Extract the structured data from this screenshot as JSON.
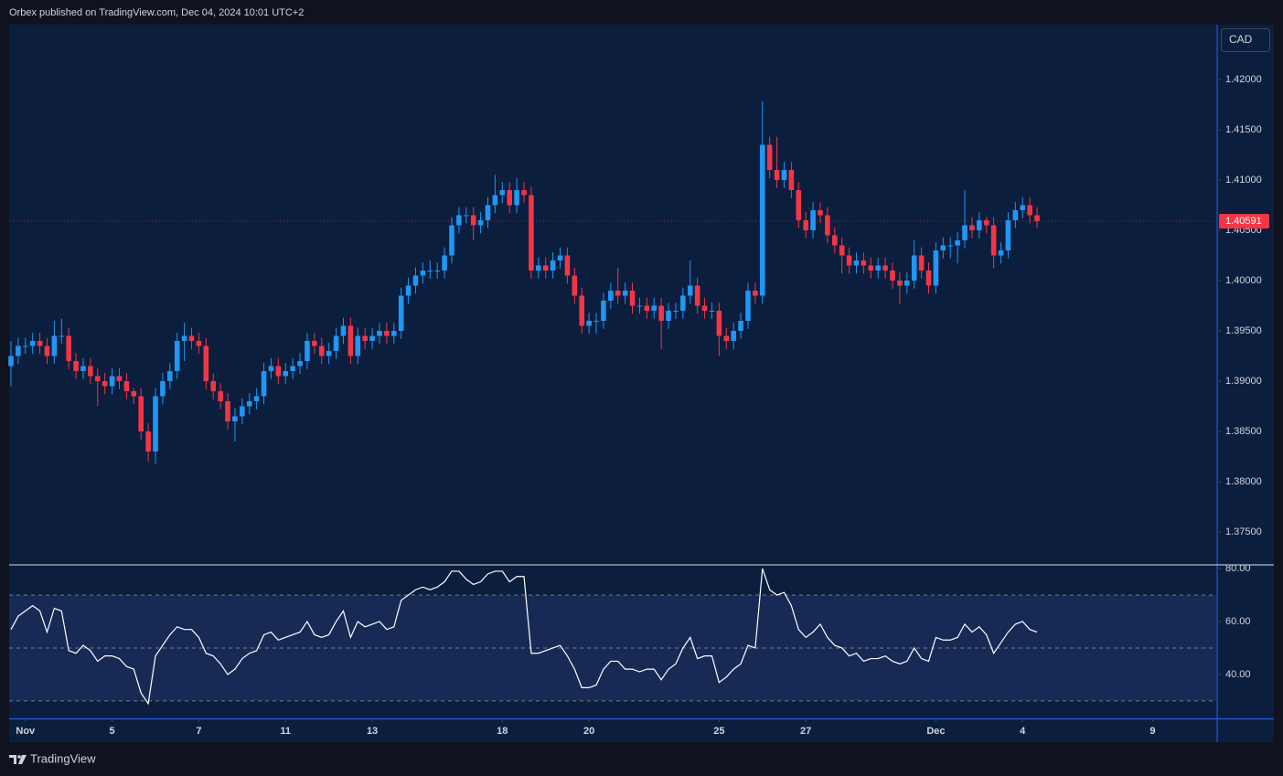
{
  "header": {
    "text": "Orbex published on TradingView.com, Dec 04, 2024 10:01 UTC+2"
  },
  "footer": {
    "brand": "TradingView"
  },
  "chart_data": [
    {
      "type": "candlestick",
      "unit": "CAD",
      "up_color": "#2196f3",
      "down_color": "#f23645",
      "grid": false,
      "open": [
        1.3915,
        1.3925,
        1.3935,
        1.3935,
        1.394,
        1.3935,
        1.3925,
        1.3945,
        1.3945,
        1.392,
        1.391,
        1.3915,
        1.3905,
        1.39,
        1.3895,
        1.3905,
        1.39,
        1.389,
        1.3885,
        1.385,
        1.383,
        1.3885,
        1.39,
        1.391,
        1.394,
        1.3945,
        1.394,
        1.3935,
        1.39,
        1.389,
        1.388,
        1.386,
        1.3865,
        1.3875,
        1.388,
        1.3885,
        1.391,
        1.3915,
        1.3905,
        1.391,
        1.3915,
        1.392,
        1.394,
        1.3935,
        1.3925,
        1.393,
        1.3945,
        1.3955,
        1.3925,
        1.3945,
        1.394,
        1.3945,
        1.395,
        1.3945,
        1.395,
        1.3985,
        1.3995,
        1.4005,
        1.401,
        1.401,
        1.401,
        1.4025,
        1.4055,
        1.4065,
        1.4065,
        1.4055,
        1.406,
        1.4075,
        1.4085,
        1.409,
        1.4075,
        1.409,
        1.4085,
        1.401,
        1.4015,
        1.401,
        1.402,
        1.4025,
        1.4005,
        1.3985,
        1.3955,
        1.396,
        1.396,
        1.398,
        1.399,
        1.3985,
        1.399,
        1.3975,
        1.3975,
        1.397,
        1.3975,
        1.396,
        1.397,
        1.397,
        1.3985,
        1.3995,
        1.3975,
        1.397,
        1.397,
        1.3945,
        1.394,
        1.395,
        1.396,
        1.399,
        1.3985,
        1.4135,
        1.411,
        1.41,
        1.411,
        1.409,
        1.406,
        1.405,
        1.407,
        1.4065,
        1.4045,
        1.4035,
        1.4025,
        1.4015,
        1.402,
        1.4015,
        1.401,
        1.4015,
        1.401,
        1.4,
        1.3995,
        1.4,
        1.4025,
        1.401,
        1.3995,
        1.403,
        1.4035,
        1.4035,
        1.404,
        1.4055,
        1.405,
        1.406,
        1.4055,
        1.4025,
        1.403,
        1.406,
        1.407,
        1.4075,
        1.4065
      ],
      "high": [
        1.394,
        1.3943,
        1.3943,
        1.3948,
        1.3948,
        1.3943,
        1.396,
        1.3962,
        1.3953,
        1.3928,
        1.3923,
        1.3923,
        1.3913,
        1.3908,
        1.3913,
        1.3913,
        1.3908,
        1.3893,
        1.3893,
        1.3858,
        1.3893,
        1.3908,
        1.3918,
        1.3948,
        1.3958,
        1.3953,
        1.3948,
        1.3943,
        1.3908,
        1.3898,
        1.3888,
        1.3873,
        1.3883,
        1.3888,
        1.3893,
        1.3918,
        1.3923,
        1.3923,
        1.3918,
        1.3923,
        1.3928,
        1.3948,
        1.3948,
        1.3943,
        1.3938,
        1.3953,
        1.3963,
        1.3963,
        1.3953,
        1.3953,
        1.3953,
        1.3958,
        1.3958,
        1.3958,
        1.3993,
        1.4003,
        1.4013,
        1.4018,
        1.402,
        1.4018,
        1.4033,
        1.4063,
        1.4073,
        1.4073,
        1.4073,
        1.4068,
        1.4083,
        1.4105,
        1.4098,
        1.4098,
        1.4102,
        1.4098,
        1.4093,
        1.4023,
        1.4023,
        1.4028,
        1.4033,
        1.4033,
        1.4013,
        1.3993,
        1.3968,
        1.3968,
        1.3988,
        1.3998,
        1.4013,
        1.3998,
        1.3998,
        1.3983,
        1.3983,
        1.3983,
        1.3983,
        1.3978,
        1.3978,
        1.3993,
        1.402,
        1.4003,
        1.3983,
        1.3978,
        1.3978,
        1.3953,
        1.3958,
        1.3968,
        1.3998,
        1.3998,
        1.4178,
        1.4143,
        1.4143,
        1.4118,
        1.4118,
        1.4098,
        1.4068,
        1.4078,
        1.4078,
        1.4073,
        1.4053,
        1.4043,
        1.4033,
        1.4028,
        1.4028,
        1.4023,
        1.4023,
        1.4023,
        1.4018,
        1.4008,
        1.4008,
        1.404,
        1.4033,
        1.4018,
        1.4038,
        1.4043,
        1.4043,
        1.4048,
        1.409,
        1.4063,
        1.4068,
        1.4063,
        1.4063,
        1.4038,
        1.4068,
        1.4078,
        1.4083,
        1.4083,
        1.4073
      ],
      "low": [
        1.3895,
        1.3917,
        1.3927,
        1.3927,
        1.3927,
        1.3917,
        1.3917,
        1.3937,
        1.3912,
        1.3902,
        1.3902,
        1.3897,
        1.3875,
        1.3887,
        1.3887,
        1.3892,
        1.3882,
        1.3877,
        1.3842,
        1.382,
        1.3818,
        1.3877,
        1.3892,
        1.3902,
        1.392,
        1.3932,
        1.3927,
        1.3892,
        1.3882,
        1.3872,
        1.3852,
        1.384,
        1.3857,
        1.3867,
        1.3872,
        1.3877,
        1.3902,
        1.3897,
        1.3897,
        1.3902,
        1.3907,
        1.3912,
        1.3927,
        1.3917,
        1.3917,
        1.3922,
        1.3937,
        1.3917,
        1.3917,
        1.3932,
        1.3932,
        1.3937,
        1.3937,
        1.3937,
        1.3942,
        1.3977,
        1.3987,
        1.3997,
        1.4002,
        1.4002,
        1.4002,
        1.4017,
        1.4047,
        1.4057,
        1.404,
        1.4047,
        1.4052,
        1.4067,
        1.4077,
        1.4067,
        1.4067,
        1.4077,
        1.4002,
        1.4002,
        1.4002,
        1.4002,
        1.4012,
        1.3997,
        1.3977,
        1.3947,
        1.3947,
        1.3947,
        1.3952,
        1.3972,
        1.3977,
        1.3977,
        1.3967,
        1.3967,
        1.3962,
        1.3962,
        1.3932,
        1.3952,
        1.3962,
        1.3962,
        1.3977,
        1.3967,
        1.3962,
        1.3962,
        1.3925,
        1.3932,
        1.3932,
        1.3942,
        1.3952,
        1.3977,
        1.3977,
        1.4102,
        1.4092,
        1.4092,
        1.4082,
        1.4052,
        1.4042,
        1.4042,
        1.4057,
        1.4037,
        1.4027,
        1.4007,
        1.4007,
        1.4007,
        1.4007,
        1.4002,
        1.4002,
        1.4002,
        1.3992,
        1.3977,
        1.3987,
        1.3992,
        1.4002,
        1.3987,
        1.3987,
        1.4022,
        1.4022,
        1.4017,
        1.4032,
        1.4042,
        1.4042,
        1.4047,
        1.4012,
        1.4017,
        1.4022,
        1.4052,
        1.4062,
        1.4057,
        1.4052
      ],
      "close": [
        1.3925,
        1.3935,
        1.3935,
        1.394,
        1.3935,
        1.3925,
        1.3945,
        1.3945,
        1.392,
        1.391,
        1.3915,
        1.3905,
        1.39,
        1.3895,
        1.3905,
        1.39,
        1.389,
        1.3885,
        1.385,
        1.383,
        1.3885,
        1.39,
        1.391,
        1.394,
        1.3945,
        1.394,
        1.3935,
        1.39,
        1.389,
        1.388,
        1.386,
        1.3865,
        1.3875,
        1.388,
        1.3885,
        1.391,
        1.3915,
        1.3905,
        1.391,
        1.3915,
        1.392,
        1.394,
        1.3935,
        1.3925,
        1.393,
        1.3945,
        1.3955,
        1.3925,
        1.3945,
        1.394,
        1.3945,
        1.395,
        1.3945,
        1.395,
        1.3985,
        1.3995,
        1.4005,
        1.401,
        1.401,
        1.401,
        1.4025,
        1.4055,
        1.4065,
        1.4065,
        1.4055,
        1.406,
        1.4075,
        1.4085,
        1.409,
        1.4075,
        1.409,
        1.4085,
        1.401,
        1.4015,
        1.401,
        1.402,
        1.4025,
        1.4005,
        1.3985,
        1.3955,
        1.396,
        1.396,
        1.398,
        1.399,
        1.3985,
        1.399,
        1.3975,
        1.3975,
        1.397,
        1.3975,
        1.396,
        1.397,
        1.397,
        1.3985,
        1.3995,
        1.3975,
        1.397,
        1.397,
        1.3945,
        1.394,
        1.395,
        1.396,
        1.399,
        1.3985,
        1.4135,
        1.411,
        1.41,
        1.411,
        1.409,
        1.406,
        1.405,
        1.407,
        1.4065,
        1.4045,
        1.4035,
        1.4025,
        1.4015,
        1.402,
        1.4015,
        1.401,
        1.4015,
        1.401,
        1.4,
        1.3995,
        1.4,
        1.4025,
        1.401,
        1.3995,
        1.403,
        1.4035,
        1.4035,
        1.404,
        1.4055,
        1.405,
        1.406,
        1.4055,
        1.4025,
        1.403,
        1.406,
        1.407,
        1.4075,
        1.4065,
        1.40591
      ],
      "last_price": {
        "value": 1.40591,
        "label": "1.40591"
      },
      "xlim": [
        -0.25,
        166.8
      ],
      "xticks": [
        {
          "value": 2,
          "label": "Nov"
        },
        {
          "value": 14,
          "label": "5"
        },
        {
          "value": 26,
          "label": "7"
        },
        {
          "value": 38,
          "label": "11"
        },
        {
          "value": 50,
          "label": "13"
        },
        {
          "value": 68,
          "label": "18"
        },
        {
          "value": 80,
          "label": "20"
        },
        {
          "value": 98,
          "label": "25"
        },
        {
          "value": 110,
          "label": "27"
        },
        {
          "value": 128,
          "label": "Dec"
        },
        {
          "value": 140,
          "label": "4"
        },
        {
          "value": 158,
          "label": "9"
        }
      ],
      "ylim": [
        1.37182,
        1.42545
      ],
      "yticks": [
        {
          "value": 1.375,
          "label": "1.37500"
        },
        {
          "value": 1.38,
          "label": "1.38000"
        },
        {
          "value": 1.385,
          "label": "1.38500"
        },
        {
          "value": 1.39,
          "label": "1.39000"
        },
        {
          "value": 1.395,
          "label": "1.39500"
        },
        {
          "value": 1.4,
          "label": "1.40000"
        },
        {
          "value": 1.405,
          "label": "1.40500"
        },
        {
          "value": 1.41,
          "label": "1.41000"
        },
        {
          "value": 1.415,
          "label": "1.41500"
        },
        {
          "value": 1.42,
          "label": "1.42000"
        }
      ]
    },
    {
      "type": "line",
      "color": "#ffffff",
      "values": [
        57,
        62,
        64,
        66,
        64,
        56,
        65,
        64,
        49,
        48,
        51,
        49,
        45,
        47,
        47,
        46,
        43,
        42,
        33,
        29,
        47,
        51,
        55,
        58,
        57,
        57,
        54,
        48,
        47,
        44,
        40,
        42,
        46,
        48,
        49,
        55,
        56,
        53,
        54,
        55,
        56,
        60,
        55,
        54,
        55,
        60,
        64,
        54,
        60,
        58,
        59,
        60,
        57,
        58,
        68,
        70,
        72,
        73,
        72,
        73,
        75,
        79,
        79,
        76,
        74,
        75,
        78,
        79,
        79,
        75,
        77,
        77,
        48,
        48,
        49,
        50,
        51,
        47,
        42,
        35,
        35,
        36,
        42,
        45,
        45,
        42,
        42,
        41,
        42,
        42,
        38,
        42,
        44,
        50,
        54,
        46,
        47,
        47,
        37,
        39,
        42,
        44,
        51,
        50,
        80,
        72,
        70,
        71,
        66,
        57,
        54,
        56,
        59,
        54,
        51,
        50,
        47,
        48,
        45,
        46,
        46,
        47,
        45,
        44,
        45,
        50,
        46,
        45,
        54,
        53,
        53,
        54,
        59,
        56,
        58,
        55,
        48,
        52,
        56,
        59,
        60,
        57,
        56
      ],
      "xlim": [
        -0.25,
        166.8
      ],
      "ylim": [
        23.4,
        81.4
      ],
      "yticks": [
        {
          "value": 40,
          "label": "40.00"
        },
        {
          "value": 60,
          "label": "60.00"
        },
        {
          "value": 80,
          "label": "80.00"
        }
      ],
      "levels": [
        70,
        50,
        30
      ],
      "band": [
        30,
        70
      ],
      "band_color": "#172a55"
    }
  ]
}
